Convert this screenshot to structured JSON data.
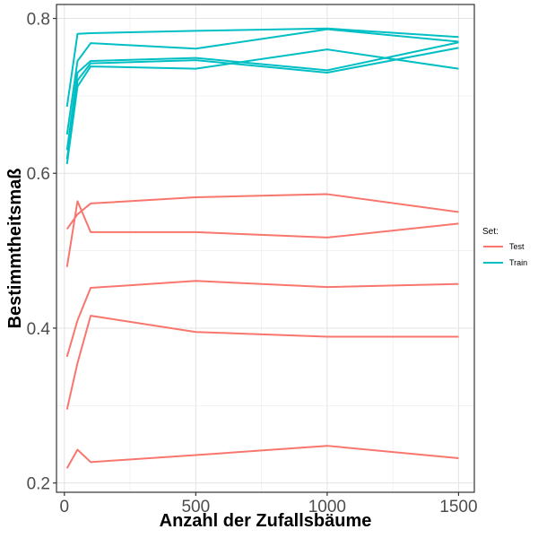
{
  "chart_data": {
    "type": "line",
    "xlabel": "Anzahl der Zufallsbäume",
    "ylabel": "Bestimmtheitsmaß",
    "xlim": [
      -30,
      1560
    ],
    "ylim": [
      0.188,
      0.818
    ],
    "xticks": [
      0,
      500,
      1000,
      1500
    ],
    "xtick_labels": [
      "0",
      "500",
      "1000",
      "1500"
    ],
    "yticks": [
      0.2,
      0.4,
      0.6,
      0.8
    ],
    "ytick_labels": [
      "0.2",
      "0.4",
      "0.6",
      "0.8"
    ],
    "grid": true,
    "legend": {
      "title": "Set:",
      "placement": "right",
      "entries": [
        {
          "label": "Test",
          "color": "#F8766D"
        },
        {
          "label": "Train",
          "color": "#00BFC4"
        }
      ]
    },
    "x": [
      10,
      50,
      100,
      500,
      1000,
      1500
    ],
    "series": [
      {
        "group": "Test",
        "color": "#F8766D",
        "values": [
          0.528,
          0.547,
          0.561,
          0.569,
          0.573,
          0.55
        ]
      },
      {
        "group": "Test",
        "color": "#F8766D",
        "values": [
          0.479,
          0.564,
          0.524,
          0.524,
          0.517,
          0.535
        ]
      },
      {
        "group": "Test",
        "color": "#F8766D",
        "values": [
          0.363,
          0.41,
          0.452,
          0.461,
          0.453,
          0.457
        ]
      },
      {
        "group": "Test",
        "color": "#F8766D",
        "values": [
          0.295,
          0.355,
          0.416,
          0.395,
          0.389,
          0.389
        ]
      },
      {
        "group": "Test",
        "color": "#F8766D",
        "values": [
          0.219,
          0.243,
          0.227,
          0.236,
          0.248,
          0.232
        ]
      },
      {
        "group": "Train",
        "color": "#00BFC4",
        "values": [
          0.686,
          0.78,
          0.781,
          0.784,
          0.787,
          0.776
        ]
      },
      {
        "group": "Train",
        "color": "#00BFC4",
        "values": [
          0.65,
          0.745,
          0.768,
          0.761,
          0.786,
          0.77
        ]
      },
      {
        "group": "Train",
        "color": "#00BFC4",
        "values": [
          0.63,
          0.73,
          0.745,
          0.749,
          0.733,
          0.769
        ]
      },
      {
        "group": "Train",
        "color": "#00BFC4",
        "values": [
          0.618,
          0.72,
          0.742,
          0.746,
          0.73,
          0.762
        ]
      },
      {
        "group": "Train",
        "color": "#00BFC4",
        "values": [
          0.612,
          0.712,
          0.738,
          0.735,
          0.76,
          0.735
        ]
      }
    ]
  }
}
